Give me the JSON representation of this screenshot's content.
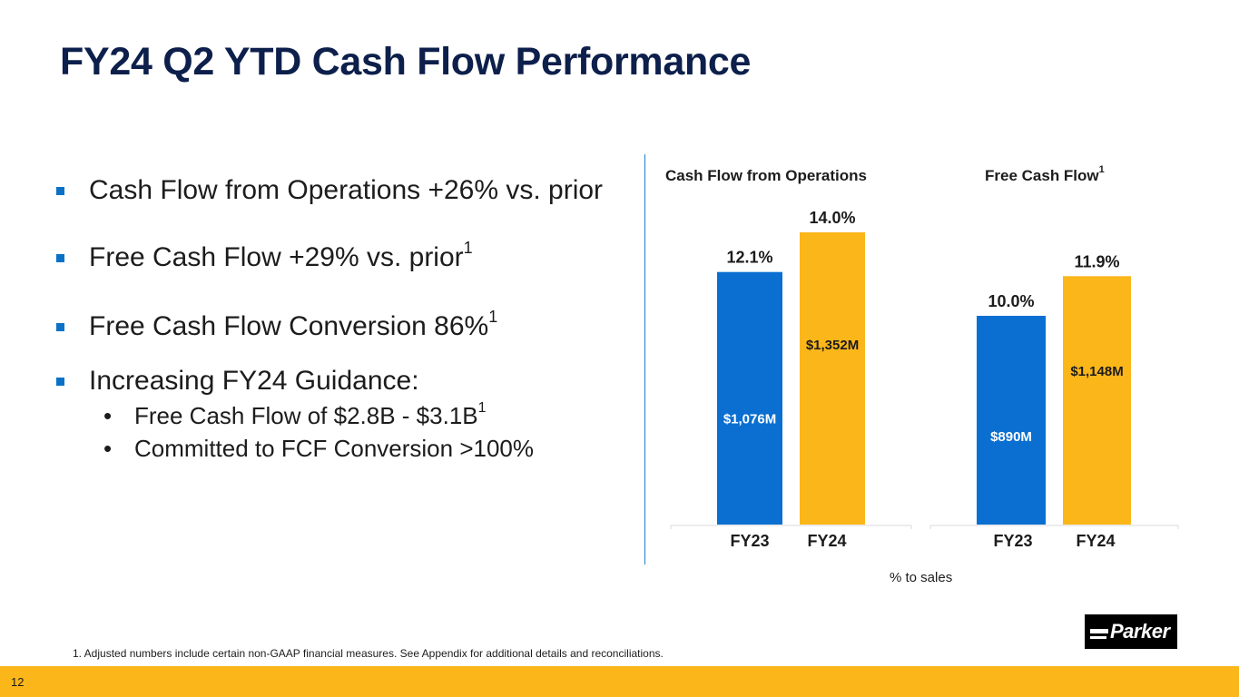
{
  "slide": {
    "title": "FY24 Q2 YTD Cash Flow Performance",
    "page_number": "12"
  },
  "bullets": [
    {
      "text": "Cash Flow from Operations +26% vs. prior",
      "sup": ""
    },
    {
      "text": "Free Cash Flow +29% vs. prior",
      "sup": "1"
    },
    {
      "text": "Free Cash Flow Conversion 86%",
      "sup": "1"
    },
    {
      "text": "Increasing FY24 Guidance:",
      "sup": ""
    }
  ],
  "sub_bullets": [
    {
      "marker": "•",
      "text": "Free Cash Flow of $2.8B - $3.1B",
      "sup": "1"
    },
    {
      "marker": "•",
      "text": "Committed to FCF Conversion >100%",
      "sup": ""
    }
  ],
  "colors": {
    "fy23": "#0a6fd1",
    "fy24": "#fbb61a",
    "title": "#0d1f4b",
    "bullet_square": "#0a72c6"
  },
  "chart_data": [
    {
      "type": "bar",
      "title": "Cash Flow from Operations",
      "title_sup": "",
      "categories": [
        "FY23",
        "FY24"
      ],
      "values_pct": [
        12.1,
        14.0
      ],
      "pct_labels": [
        "12.1%",
        "14.0%"
      ],
      "value_labels": [
        "$1,076M",
        "$1,352M"
      ],
      "values_musd": [
        1076,
        1352
      ],
      "ylim": [
        0,
        14.0
      ]
    },
    {
      "type": "bar",
      "title": "Free Cash Flow",
      "title_sup": "1",
      "categories": [
        "FY23",
        "FY24"
      ],
      "values_pct": [
        10.0,
        11.9
      ],
      "pct_labels": [
        "10.0%",
        "11.9%"
      ],
      "value_labels": [
        "$890M",
        "$1,148M"
      ],
      "values_musd": [
        890,
        1148
      ],
      "ylim": [
        0,
        14.0
      ]
    }
  ],
  "chart_note": "% to sales",
  "logo": {
    "text": "Parker"
  },
  "footnote": "1. Adjusted numbers include certain non-GAAP financial measures. See Appendix for additional details and reconciliations."
}
